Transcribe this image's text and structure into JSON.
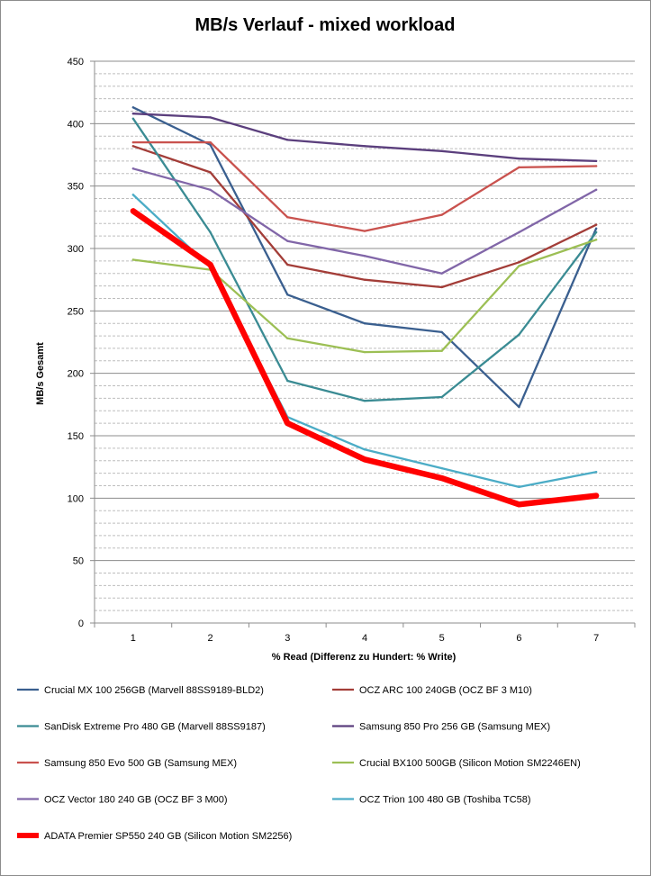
{
  "chart_data": {
    "type": "line",
    "title": "MB/s Verlauf - mixed workload",
    "xlabel": "% Read (Differenz zu Hundert: % Write)",
    "ylabel": "MB/s Gesamt",
    "categories": [
      "1",
      "2",
      "3",
      "4",
      "5",
      "6",
      "7"
    ],
    "ylim": [
      0,
      450
    ],
    "yticks": [
      0,
      50,
      100,
      150,
      200,
      250,
      300,
      350,
      400,
      450
    ],
    "grid": "major solid, minor dashed every 10",
    "legend_position": "bottom",
    "series": [
      {
        "name": "Crucial MX 100 256GB (Marvell 88SS9189-BLD2)",
        "color": "#3a5f8f",
        "emphasis": false,
        "values": [
          413,
          383,
          263,
          240,
          233,
          173,
          316
        ]
      },
      {
        "name": "OCZ ARC 100 240GB (OCZ BF 3 M10)",
        "color": "#a33d38",
        "emphasis": false,
        "values": [
          382,
          361,
          287,
          275,
          269,
          289,
          319
        ]
      },
      {
        "name": "SanDisk Extreme Pro 480 GB (Marvell 88SS9187)",
        "color": "#3a8b93",
        "emphasis": false,
        "values": [
          404,
          313,
          194,
          178,
          181,
          231,
          313
        ]
      },
      {
        "name": "Samsung 850 Pro 256 GB (Samsung MEX)",
        "color": "#5b3f7d",
        "emphasis": false,
        "values": [
          408,
          405,
          387,
          382,
          378,
          372,
          370
        ]
      },
      {
        "name": "Samsung 850 Evo 500 GB (Samsung MEX)",
        "color": "#c9524e",
        "emphasis": false,
        "values": [
          385,
          385,
          325,
          314,
          327,
          365,
          366
        ]
      },
      {
        "name": "Crucial BX100 500GB (Silicon Motion SM2246EN)",
        "color": "#9cbf54",
        "emphasis": false,
        "values": [
          291,
          283,
          228,
          217,
          218,
          286,
          307
        ]
      },
      {
        "name": "OCZ Vector 180 240 GB (OCZ BF 3 M00)",
        "color": "#8166a8",
        "emphasis": false,
        "values": [
          364,
          347,
          306,
          294,
          280,
          313,
          347
        ]
      },
      {
        "name": "OCZ Trion 100 480 GB (Toshiba TC58)",
        "color": "#4bacc6",
        "emphasis": false,
        "values": [
          343,
          285,
          165,
          139,
          124,
          109,
          121
        ]
      },
      {
        "name": "ADATA Premier SP550 240 GB (Silicon Motion SM2256)",
        "color": "#ff0000",
        "emphasis": true,
        "values": [
          330,
          287,
          160,
          131,
          116,
          95,
          102
        ]
      }
    ]
  }
}
